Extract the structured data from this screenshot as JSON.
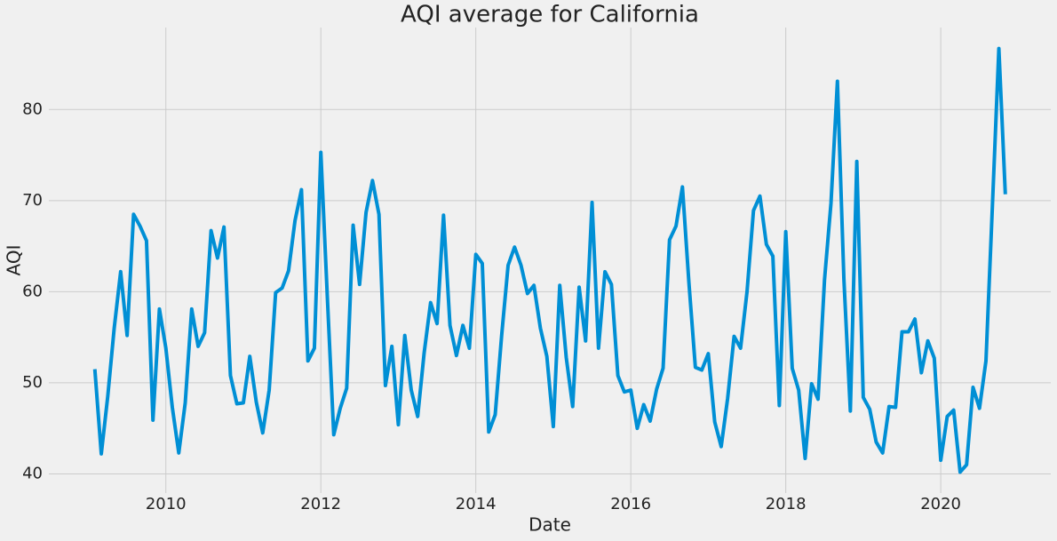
{
  "chart_data": {
    "type": "line",
    "title": "AQI average for California",
    "xlabel": "Date",
    "ylabel": "AQI",
    "x": [
      "2009-01",
      "2009-02",
      "2009-03",
      "2009-04",
      "2009-05",
      "2009-06",
      "2009-07",
      "2009-08",
      "2009-09",
      "2009-10",
      "2009-11",
      "2009-12",
      "2010-01",
      "2010-02",
      "2010-03",
      "2010-04",
      "2010-05",
      "2010-06",
      "2010-07",
      "2010-08",
      "2010-09",
      "2010-10",
      "2010-11",
      "2010-12",
      "2011-01",
      "2011-02",
      "2011-03",
      "2011-04",
      "2011-05",
      "2011-06",
      "2011-07",
      "2011-08",
      "2011-09",
      "2011-10",
      "2011-11",
      "2011-12",
      "2012-01",
      "2012-02",
      "2012-03",
      "2012-04",
      "2012-05",
      "2012-06",
      "2012-07",
      "2012-08",
      "2012-09",
      "2012-10",
      "2012-11",
      "2012-12",
      "2013-01",
      "2013-02",
      "2013-03",
      "2013-04",
      "2013-05",
      "2013-06",
      "2013-07",
      "2013-08",
      "2013-09",
      "2013-10",
      "2013-11",
      "2013-12",
      "2014-01",
      "2014-02",
      "2014-03",
      "2014-04",
      "2014-05",
      "2014-06",
      "2014-07",
      "2014-08",
      "2014-09",
      "2014-10",
      "2014-11",
      "2014-12",
      "2015-01",
      "2015-02",
      "2015-03",
      "2015-04",
      "2015-05",
      "2015-06",
      "2015-07",
      "2015-08",
      "2015-09",
      "2015-10",
      "2015-11",
      "2015-12",
      "2016-01",
      "2016-02",
      "2016-03",
      "2016-04",
      "2016-05",
      "2016-06",
      "2016-07",
      "2016-08",
      "2016-09",
      "2016-10",
      "2016-11",
      "2016-12",
      "2017-01",
      "2017-02",
      "2017-03",
      "2017-04",
      "2017-05",
      "2017-06",
      "2017-07",
      "2017-08",
      "2017-09",
      "2017-10",
      "2017-11",
      "2017-12",
      "2018-01",
      "2018-02",
      "2018-03",
      "2018-04",
      "2018-05",
      "2018-06",
      "2018-07",
      "2018-08",
      "2018-09",
      "2018-10",
      "2018-11",
      "2018-12",
      "2019-01",
      "2019-02",
      "2019-03",
      "2019-04",
      "2019-05",
      "2019-06",
      "2019-07",
      "2019-08",
      "2019-09",
      "2019-10",
      "2019-11",
      "2019-12",
      "2020-01",
      "2020-02",
      "2020-03",
      "2020-04",
      "2020-05",
      "2020-06",
      "2020-07",
      "2020-08",
      "2020-09",
      "2020-10"
    ],
    "values": [
      51.5,
      42.2,
      48.5,
      56,
      62.2,
      55.2,
      68.5,
      67.2,
      65.6,
      45.9,
      58.1,
      53.8,
      47.3,
      42.3,
      47.8,
      58.1,
      54,
      55.5,
      66.7,
      63.7,
      67.1,
      50.8,
      47.7,
      47.8,
      52.9,
      47.9,
      44.5,
      49.2,
      59.9,
      60.4,
      62.3,
      67.8,
      71.2,
      52.4,
      53.8,
      75.3,
      59.5,
      44.3,
      47.2,
      49.4,
      67.3,
      60.8,
      68.7,
      72.2,
      68.5,
      49.7,
      54,
      45.4,
      55.2,
      49.2,
      46.3,
      53.3,
      58.8,
      56.5,
      68.4,
      56.3,
      53,
      56.3,
      53.8,
      64.1,
      63.1,
      44.6,
      46.5,
      55.2,
      62.9,
      64.9,
      62.9,
      59.8,
      60.7,
      56,
      52.9,
      45.2,
      60.7,
      52.8,
      47.4,
      60.5,
      54.6,
      69.8,
      53.8,
      62.2,
      60.8,
      50.8,
      49,
      49.2,
      45,
      47.6,
      45.8,
      49.3,
      51.6,
      65.7,
      67.2,
      71.5,
      61,
      51.7,
      51.4,
      53.2,
      45.7,
      43,
      48.3,
      55.1,
      53.8,
      60,
      68.9,
      70.5,
      65.2,
      63.9,
      47.5,
      66.6,
      51.6,
      49.2,
      41.7,
      49.9,
      48.2,
      61.3,
      69.7,
      83.1,
      61.4,
      46.9,
      74.3,
      48.4,
      47.1,
      43.5,
      42.3,
      47.4,
      47.3,
      55.6,
      55.6,
      57,
      51.1,
      54.6,
      52.7,
      41.5,
      46.3,
      47,
      40.2,
      41,
      49.5,
      47.2,
      52.4,
      69.4,
      86.7,
      70.7
    ],
    "color": "#008fd5",
    "xlim": [
      2008.49,
      2021.42
    ],
    "xticks": [
      2010,
      2012,
      2014,
      2016,
      2018,
      2020
    ],
    "ylim": [
      37.9,
      89.0
    ],
    "yticks": [
      40,
      50,
      60,
      70,
      80
    ],
    "grid": true
  }
}
